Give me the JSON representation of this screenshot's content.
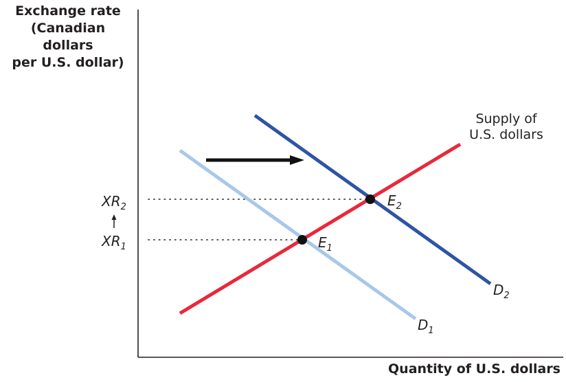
{
  "y_axis_label": [
    "Exchange rate",
    "(Canadian dollars",
    "per U.S. dollar)"
  ],
  "x_axis_label": "Quantity of U.S. dollars",
  "supply_label": [
    "Supply of",
    "U.S. dollars"
  ],
  "price_labels": [
    {
      "base": "XR",
      "sub": "2"
    },
    {
      "base": "XR",
      "sub": "1"
    }
  ],
  "equilibria": [
    {
      "base": "E",
      "sub": "1"
    },
    {
      "base": "E",
      "sub": "2"
    }
  ],
  "demand_labels": [
    {
      "base": "D",
      "sub": "1"
    },
    {
      "base": "D",
      "sub": "2"
    }
  ],
  "colors": {
    "supply": "#e8293b",
    "demand_1": "#a9c7ea",
    "demand_2": "#2e54a4",
    "axis": "#231f20",
    "point": "#111111"
  },
  "icons": [
    "shift-arrow-icon",
    "up-arrow-icon"
  ]
}
